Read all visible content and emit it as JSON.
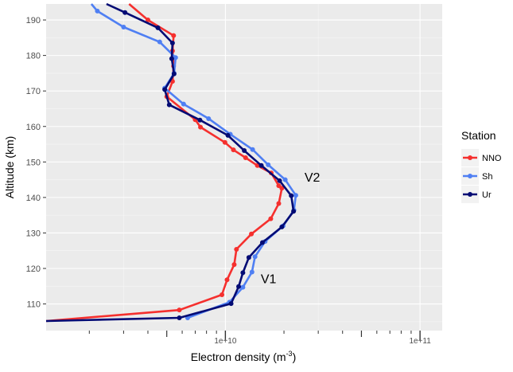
{
  "chart_data": {
    "type": "line",
    "title": "",
    "xlabel": "Electron density (m",
    "xlabel_sup": "-3",
    "xlabel_close": ")",
    "ylabel": "Altitude (km)",
    "xscale": "log",
    "xlim": [
      1200000000.0,
      130000000000.0
    ],
    "ylim": [
      102.5,
      194.5
    ],
    "grid": true,
    "x_tick_labels": [
      {
        "value": 10000000000.0,
        "label": "1e+10"
      },
      {
        "value": 100000000000.0,
        "label": "1e+11"
      }
    ],
    "y_tick_labels": [
      {
        "value": 110,
        "label": "110"
      },
      {
        "value": 120,
        "label": "120"
      },
      {
        "value": 130,
        "label": "130"
      },
      {
        "value": 140,
        "label": "140"
      },
      {
        "value": 150,
        "label": "150"
      },
      {
        "value": 160,
        "label": "160"
      },
      {
        "value": 170,
        "label": "170"
      },
      {
        "value": 180,
        "label": "180"
      },
      {
        "value": 190,
        "label": "190"
      }
    ],
    "legend_title": "Station",
    "legend_position": "right",
    "series": [
      {
        "name": "NNO",
        "color": "#f5302e",
        "points": [
          {
            "x": 1000000000.0,
            "y": 105.2
          },
          {
            "x": 5800000000.0,
            "y": 108.3
          },
          {
            "x": 9600000000.0,
            "y": 112.6
          },
          {
            "x": 10200000000.0,
            "y": 116.8
          },
          {
            "x": 11100000000.0,
            "y": 121.1
          },
          {
            "x": 11400000000.0,
            "y": 125.4
          },
          {
            "x": 13600000000.0,
            "y": 129.7
          },
          {
            "x": 17100000000.0,
            "y": 134.0
          },
          {
            "x": 18800000000.0,
            "y": 138.3
          },
          {
            "x": 19500000000.0,
            "y": 142.6
          },
          {
            "x": 18800000000.0,
            "y": 143.3
          },
          {
            "x": 17200000000.0,
            "y": 146.9
          },
          {
            "x": 14600000000.0,
            "y": 149.0
          },
          {
            "x": 12700000000.0,
            "y": 151.2
          },
          {
            "x": 11000000000.0,
            "y": 153.4
          },
          {
            "x": 9950000000.0,
            "y": 155.5
          },
          {
            "x": 7450000000.0,
            "y": 159.8
          },
          {
            "x": 7000000000.0,
            "y": 161.9
          },
          {
            "x": 5000000000.0,
            "y": 168.4
          },
          {
            "x": 5350000000.0,
            "y": 172.7
          },
          {
            "x": 5420000000.0,
            "y": 177.0
          },
          {
            "x": 5350000000.0,
            "y": 181.3
          },
          {
            "x": 5420000000.0,
            "y": 185.6
          },
          {
            "x": 4000000000.0,
            "y": 190.0
          },
          {
            "x": 3200000000.0,
            "y": 194.5
          }
        ]
      },
      {
        "name": "Sh",
        "color": "#4f7ff3",
        "points": [
          {
            "x": 6400000000.0,
            "y": 106.1
          },
          {
            "x": 10500000000.0,
            "y": 110.5
          },
          {
            "x": 12300000000.0,
            "y": 114.7
          },
          {
            "x": 13700000000.0,
            "y": 119.0
          },
          {
            "x": 14200000000.0,
            "y": 123.3
          },
          {
            "x": 16000000000.0,
            "y": 127.6
          },
          {
            "x": 19800000000.0,
            "y": 132.0
          },
          {
            "x": 22500000000.0,
            "y": 136.4
          },
          {
            "x": 23000000000.0,
            "y": 140.6
          },
          {
            "x": 20300000000.0,
            "y": 145.0
          },
          {
            "x": 16600000000.0,
            "y": 149.2
          },
          {
            "x": 13800000000.0,
            "y": 153.5
          },
          {
            "x": 10600000000.0,
            "y": 157.8
          },
          {
            "x": 8200000000.0,
            "y": 162.2
          },
          {
            "x": 6100000000.0,
            "y": 166.3
          },
          {
            "x": 4880000000.0,
            "y": 170.8
          },
          {
            "x": 5450000000.0,
            "y": 175.0
          },
          {
            "x": 5550000000.0,
            "y": 179.4
          },
          {
            "x": 4600000000.0,
            "y": 183.8
          },
          {
            "x": 3000000000.0,
            "y": 188.0
          },
          {
            "x": 2200000000.0,
            "y": 192.5
          },
          {
            "x": 2050000000.0,
            "y": 194.5
          }
        ]
      },
      {
        "name": "Ur",
        "color": "#030b74",
        "points": [
          {
            "x": 1000000000.0,
            "y": 105.2
          },
          {
            "x": 5800000000.0,
            "y": 106.1
          },
          {
            "x": 10700000000.0,
            "y": 110.1
          },
          {
            "x": 11700000000.0,
            "y": 114.9
          },
          {
            "x": 12300000000.0,
            "y": 118.8
          },
          {
            "x": 13200000000.0,
            "y": 123.1
          },
          {
            "x": 15500000000.0,
            "y": 127.3
          },
          {
            "x": 19500000000.0,
            "y": 131.7
          },
          {
            "x": 22400000000.0,
            "y": 136.1
          },
          {
            "x": 21800000000.0,
            "y": 140.5
          },
          {
            "x": 19000000000.0,
            "y": 144.7
          },
          {
            "x": 15300000000.0,
            "y": 149.0
          },
          {
            "x": 12500000000.0,
            "y": 153.2
          },
          {
            "x": 10300000000.0,
            "y": 157.5
          },
          {
            "x": 7400000000.0,
            "y": 161.8
          },
          {
            "x": 5150000000.0,
            "y": 166.1
          },
          {
            "x": 4880000000.0,
            "y": 170.4
          },
          {
            "x": 5450000000.0,
            "y": 174.8
          },
          {
            "x": 5300000000.0,
            "y": 179.1
          },
          {
            "x": 5350000000.0,
            "y": 183.5
          },
          {
            "x": 4500000000.0,
            "y": 187.8
          },
          {
            "x": 3050000000.0,
            "y": 192.1
          },
          {
            "x": 2450000000.0,
            "y": 194.5
          }
        ]
      }
    ],
    "annotations": [
      {
        "text": "V2",
        "x": 25500000000.0,
        "y": 144.5
      },
      {
        "text": "V1",
        "x": 15200000000.0,
        "y": 115.8
      }
    ]
  }
}
